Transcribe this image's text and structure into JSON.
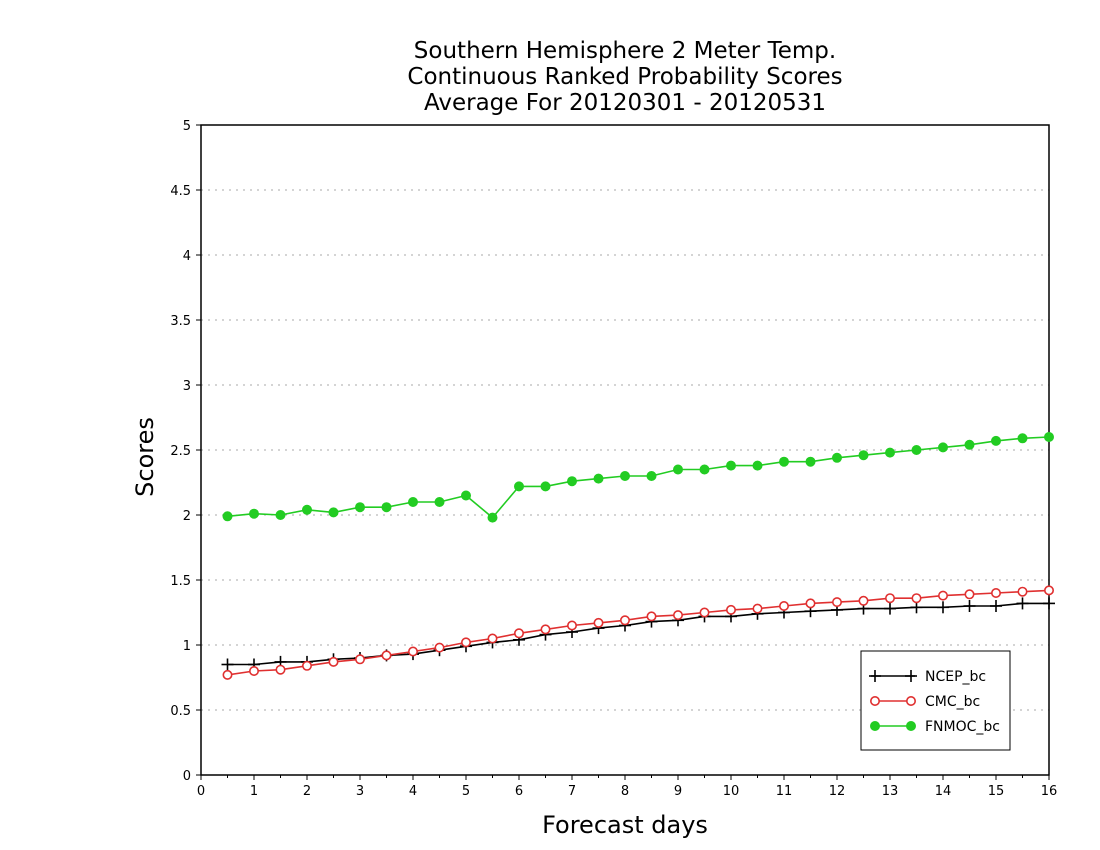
{
  "chart_data": {
    "type": "line",
    "title_lines": [
      "Southern Hemisphere 2 Meter Temp.",
      "Continuous Ranked Probability Scores",
      "Average For 20120301 - 20120531"
    ],
    "xlabel": "Forecast days",
    "ylabel": "Scores",
    "xlim": [
      0,
      16
    ],
    "ylim": [
      0,
      5
    ],
    "x_ticks": [
      "0",
      "1",
      "2",
      "3",
      "4",
      "5",
      "6",
      "7",
      "8",
      "9",
      "10",
      "11",
      "12",
      "13",
      "14",
      "15",
      "16"
    ],
    "y_ticks": [
      "0",
      "0.5",
      "1",
      "1.5",
      "2",
      "2.5",
      "3",
      "3.5",
      "4",
      "4.5",
      "5"
    ],
    "grid": true,
    "legend_position": "bottom-right",
    "x": [
      0.5,
      1,
      1.5,
      2,
      2.5,
      3,
      3.5,
      4,
      4.5,
      5,
      5.5,
      6,
      6.5,
      7,
      7.5,
      8,
      8.5,
      9,
      9.5,
      10,
      10.5,
      11,
      11.5,
      12,
      12.5,
      13,
      13.5,
      14,
      14.5,
      15,
      15.5,
      16
    ],
    "series": [
      {
        "name": "NCEP_bc",
        "color": "#000000",
        "marker": "plus",
        "values": [
          0.85,
          0.85,
          0.87,
          0.87,
          0.89,
          0.9,
          0.92,
          0.93,
          0.96,
          0.99,
          1.02,
          1.04,
          1.08,
          1.1,
          1.13,
          1.15,
          1.18,
          1.19,
          1.22,
          1.22,
          1.24,
          1.25,
          1.26,
          1.27,
          1.28,
          1.28,
          1.29,
          1.29,
          1.3,
          1.3,
          1.32,
          1.32
        ]
      },
      {
        "name": "CMC_bc",
        "color": "#e03030",
        "marker": "open-circle",
        "values": [
          0.77,
          0.8,
          0.81,
          0.84,
          0.87,
          0.89,
          0.92,
          0.95,
          0.98,
          1.02,
          1.05,
          1.09,
          1.12,
          1.15,
          1.17,
          1.19,
          1.22,
          1.23,
          1.25,
          1.27,
          1.28,
          1.3,
          1.32,
          1.33,
          1.34,
          1.36,
          1.36,
          1.38,
          1.39,
          1.4,
          1.41,
          1.42
        ]
      },
      {
        "name": "FNMOC_bc",
        "color": "#22cc22",
        "marker": "filled-circle",
        "values": [
          1.99,
          2.01,
          2.0,
          2.04,
          2.02,
          2.06,
          2.06,
          2.1,
          2.1,
          2.15,
          1.98,
          2.22,
          2.22,
          2.26,
          2.28,
          2.3,
          2.3,
          2.35,
          2.35,
          2.38,
          2.38,
          2.41,
          2.41,
          2.44,
          2.46,
          2.48,
          2.5,
          2.52,
          2.54,
          2.57,
          2.59,
          2.6
        ]
      }
    ]
  }
}
